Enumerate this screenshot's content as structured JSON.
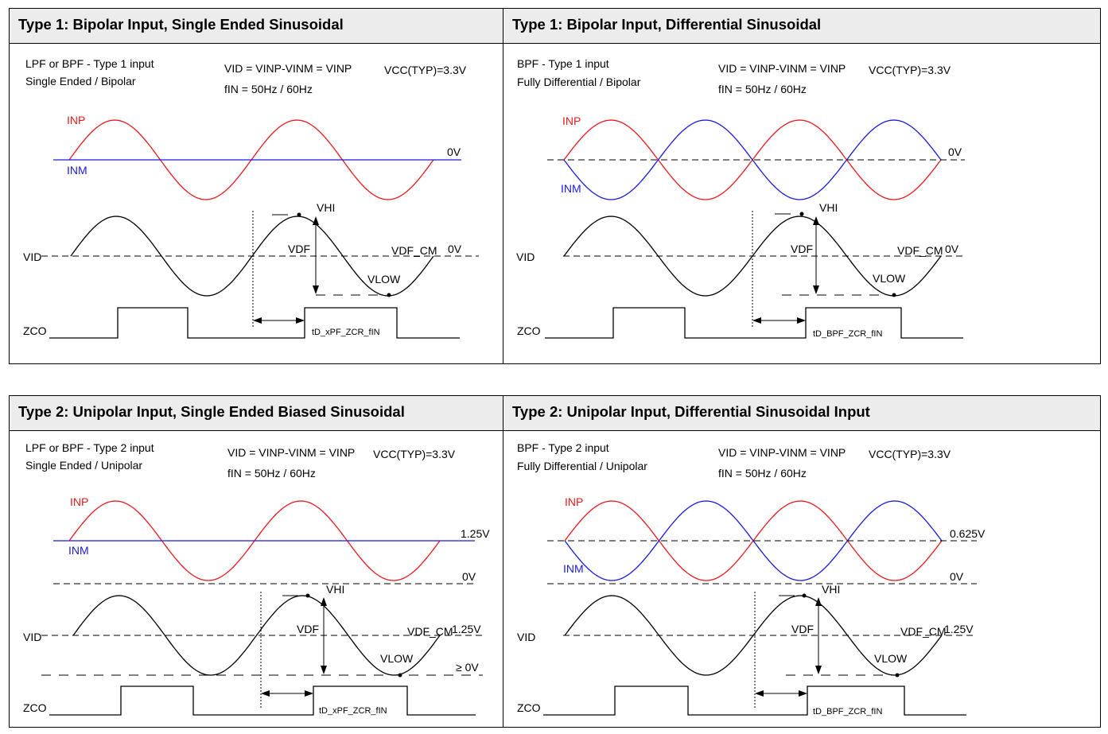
{
  "panels": [
    {
      "title": "Type 1: Bipolar Input, Single Ended Sinusoidal",
      "desc1": "LPF or BPF -  Type 1 input",
      "desc2": "Single Ended / Bipolar",
      "vid_eq": "VID = VINP-VINM = VINP",
      "vcc": "VCC(TYP)=3.3V",
      "fin": "fIN = 50Hz / 60Hz",
      "inp": "INP",
      "inm": "INM",
      "input_ref": "0V",
      "vid": "VID",
      "vhi": "VHI",
      "vdf": "VDF",
      "vdf_cm": "VDF_CM",
      "vdf_cm_value": "0V",
      "vlow": "VLOW",
      "zco": "ZCO",
      "td": "tD_xPF_ZCR_fIN"
    },
    {
      "title": "Type 1: Bipolar Input, Differential Sinusoidal",
      "desc1": "BPF -  Type 1 input",
      "desc2": "Fully Differential / Bipolar",
      "vid_eq": "VID = VINP-VINM = VINP",
      "vcc": "VCC(TYP)=3.3V",
      "fin": "fIN = 50Hz / 60Hz",
      "inp": "INP",
      "inm": "INM",
      "input_ref": "0V",
      "vid": "VID",
      "vhi": "VHI",
      "vdf": "VDF",
      "vdf_cm": "VDF_CM",
      "vdf_cm_value": "0V",
      "vlow": "VLOW",
      "zco": "ZCO",
      "td": "tD_BPF_ZCR_fIN"
    },
    {
      "title": "Type 2: Unipolar Input, Single Ended Biased Sinusoidal",
      "desc1": "LPF or BPF -  Type 2 input",
      "desc2": "Single Ended / Unipolar",
      "vid_eq": "VID = VINP-VINM = VINP",
      "vcc": "VCC(TYP)=3.3V",
      "fin": "fIN = 50Hz / 60Hz",
      "inp": "INP",
      "inm": "INM",
      "input_ref": "1.25V",
      "ground_ref": "0V",
      "vid": "VID",
      "vhi": "VHI",
      "vdf": "VDF",
      "vdf_cm": "VDF_CM",
      "vdf_cm_value": "1.25V",
      "vlow": "VLOW",
      "vlow_value": "≥ 0V",
      "zco": "ZCO",
      "td": "tD_xPF_ZCR_fIN"
    },
    {
      "title": "Type 2: Unipolar Input, Differential Sinusoidal Input",
      "desc1": "BPF -  Type 2 input",
      "desc2": "Fully Differential / Unipolar",
      "vid_eq": "VID = VINP-VINM = VINP",
      "vcc": "VCC(TYP)=3.3V",
      "fin": "fIN = 50Hz / 60Hz",
      "inp": "INP",
      "inm": "INM",
      "input_ref": "0.625V",
      "ground_ref": "0V",
      "vid": "VID",
      "vhi": "VHI",
      "vdf": "VDF",
      "vdf_cm": "VDF_CM",
      "vdf_cm_value": "1.25V",
      "vlow": "VLOW",
      "zco": "ZCO",
      "td": "tD_BPF_ZCR_fIN"
    }
  ],
  "colors": {
    "inp": "#e8191c",
    "inm": "#1a1adb",
    "trace": "#000000",
    "header_bg": "#ececec"
  }
}
